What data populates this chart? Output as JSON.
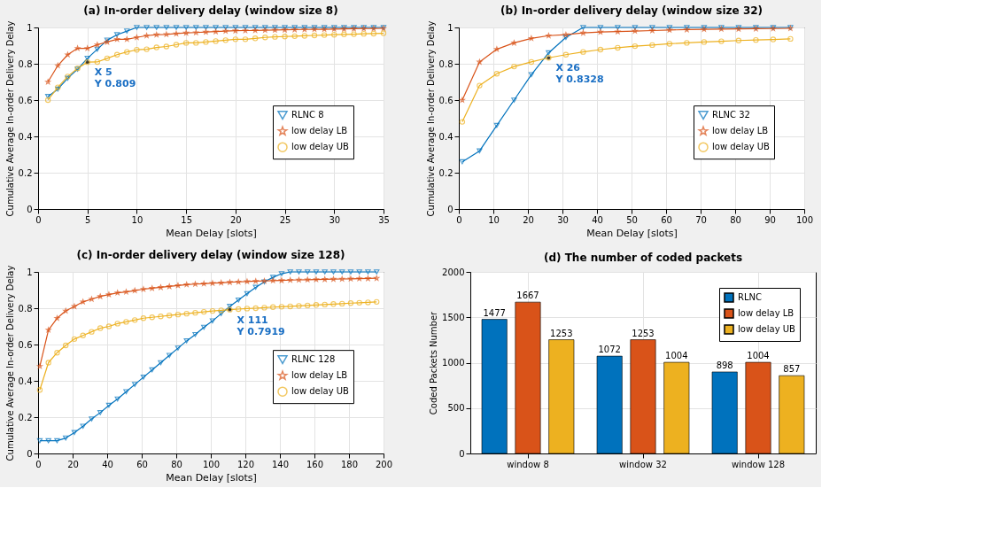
{
  "chart_data": [
    {
      "type": "line",
      "title": "(a) In-order delivery delay (window size 8)",
      "xlabel": "Mean Delay [slots]",
      "ylabel": "Cumulative Average In-order Delivery Delay",
      "x": [
        1,
        2,
        3,
        4,
        5,
        6,
        7,
        8,
        9,
        10,
        11,
        12,
        13,
        14,
        15,
        16,
        17,
        18,
        19,
        20,
        21,
        22,
        23,
        24,
        25,
        26,
        27,
        28,
        29,
        30,
        31,
        32,
        33,
        34,
        35
      ],
      "xlim": [
        0,
        35
      ],
      "xticks": [
        0,
        5,
        10,
        15,
        20,
        25,
        30,
        35
      ],
      "ylim": [
        0,
        1
      ],
      "yticks": [
        0,
        0.2,
        0.4,
        0.6,
        0.8,
        1
      ],
      "grid": true,
      "legend": "right",
      "series": [
        {
          "name": "RLNC 8",
          "color": "#0072bd",
          "marker": "triangle",
          "values": [
            0.62,
            0.66,
            0.72,
            0.77,
            0.83,
            0.88,
            0.93,
            0.96,
            0.98,
            1,
            1,
            1,
            1,
            1,
            1,
            1,
            1,
            1,
            1,
            1,
            1,
            1,
            1,
            1,
            1,
            1,
            1,
            1,
            1,
            1,
            1,
            1,
            1,
            1,
            1
          ]
        },
        {
          "name": "low delay LB",
          "color": "#d95319",
          "marker": "star",
          "values": [
            0.7,
            0.79,
            0.85,
            0.885,
            0.885,
            0.905,
            0.92,
            0.935,
            0.935,
            0.945,
            0.955,
            0.96,
            0.962,
            0.966,
            0.97,
            0.972,
            0.975,
            0.977,
            0.98,
            0.982,
            0.983,
            0.984,
            0.985,
            0.986,
            0.987,
            0.988,
            0.989,
            0.99,
            0.99,
            0.991,
            0.992,
            0.993,
            0.994,
            0.994,
            0.995
          ]
        },
        {
          "name": "low delay UB",
          "color": "#edb120",
          "marker": "circle",
          "values": [
            0.6,
            0.67,
            0.73,
            0.775,
            0.809,
            0.81,
            0.83,
            0.85,
            0.865,
            0.877,
            0.88,
            0.89,
            0.895,
            0.905,
            0.915,
            0.915,
            0.92,
            0.925,
            0.93,
            0.935,
            0.935,
            0.94,
            0.945,
            0.948,
            0.95,
            0.952,
            0.954,
            0.956,
            0.958,
            0.96,
            0.962,
            0.963,
            0.965,
            0.966,
            0.968
          ]
        }
      ],
      "annotations": [
        {
          "text": "X 5\nY 0.809",
          "x": 5,
          "y": 0.809
        }
      ]
    },
    {
      "type": "line",
      "title": "(b) In-order delivery delay (window size 32)",
      "xlabel": "Mean Delay [slots]",
      "ylabel": "Cumulative Average In-order Delivery Delay",
      "x": [
        1,
        6,
        11,
        16,
        21,
        26,
        31,
        36,
        41,
        46,
        51,
        56,
        61,
        66,
        71,
        76,
        81,
        86,
        91,
        96
      ],
      "xlim": [
        0,
        100
      ],
      "xticks": [
        0,
        10,
        20,
        30,
        40,
        50,
        60,
        70,
        80,
        90,
        100
      ],
      "ylim": [
        0,
        1
      ],
      "yticks": [
        0,
        0.2,
        0.4,
        0.6,
        0.8,
        1
      ],
      "grid": true,
      "legend": "right",
      "series": [
        {
          "name": "RLNC 32",
          "color": "#0072bd",
          "marker": "triangle",
          "values": [
            0.26,
            0.32,
            0.46,
            0.6,
            0.74,
            0.86,
            0.945,
            1,
            1,
            1,
            1,
            1,
            1,
            1,
            1,
            1,
            1,
            1,
            1,
            1
          ]
        },
        {
          "name": "low delay LB",
          "color": "#d95319",
          "marker": "star",
          "values": [
            0.6,
            0.81,
            0.88,
            0.915,
            0.94,
            0.955,
            0.96,
            0.97,
            0.975,
            0.977,
            0.98,
            0.983,
            0.986,
            0.988,
            0.99,
            0.991,
            0.992,
            0.993,
            0.994,
            0.995
          ]
        },
        {
          "name": "low delay UB",
          "color": "#edb120",
          "marker": "circle",
          "values": [
            0.48,
            0.68,
            0.745,
            0.785,
            0.81,
            0.8328,
            0.85,
            0.865,
            0.878,
            0.888,
            0.897,
            0.903,
            0.91,
            0.915,
            0.92,
            0.924,
            0.928,
            0.931,
            0.934,
            0.937
          ]
        }
      ],
      "annotations": [
        {
          "text": "X 26\nY 0.8328",
          "x": 26,
          "y": 0.8328
        }
      ]
    },
    {
      "type": "line",
      "title": "(c) In-order delivery delay (window size 128)",
      "xlabel": "Mean Delay [slots]",
      "ylabel": "Cumulative Average In-order Delivery Delay",
      "x": [
        1,
        6,
        11,
        16,
        21,
        26,
        31,
        36,
        41,
        46,
        51,
        56,
        61,
        66,
        71,
        76,
        81,
        86,
        91,
        96,
        101,
        106,
        111,
        116,
        121,
        126,
        131,
        136,
        141,
        146,
        151,
        156,
        161,
        166,
        171,
        176,
        181,
        186,
        191,
        196
      ],
      "xlim": [
        0,
        200
      ],
      "xticks": [
        0,
        20,
        40,
        60,
        80,
        100,
        120,
        140,
        160,
        180,
        200
      ],
      "ylim": [
        0,
        1
      ],
      "yticks": [
        0,
        0.2,
        0.4,
        0.6,
        0.8,
        1
      ],
      "grid": true,
      "legend": "right",
      "series": [
        {
          "name": "RLNC 128",
          "color": "#0072bd",
          "marker": "triangle",
          "values": [
            0.07,
            0.07,
            0.07,
            0.085,
            0.115,
            0.15,
            0.19,
            0.225,
            0.265,
            0.3,
            0.34,
            0.38,
            0.42,
            0.46,
            0.5,
            0.54,
            0.58,
            0.62,
            0.655,
            0.695,
            0.73,
            0.77,
            0.81,
            0.845,
            0.88,
            0.915,
            0.945,
            0.97,
            0.99,
            1,
            1,
            1,
            1,
            1,
            1,
            1,
            1,
            1,
            1,
            1
          ]
        },
        {
          "name": "low delay LB",
          "color": "#d95319",
          "marker": "star",
          "values": [
            0.48,
            0.68,
            0.745,
            0.785,
            0.81,
            0.835,
            0.85,
            0.865,
            0.875,
            0.885,
            0.89,
            0.897,
            0.905,
            0.91,
            0.915,
            0.92,
            0.925,
            0.93,
            0.933,
            0.935,
            0.938,
            0.94,
            0.943,
            0.945,
            0.947,
            0.949,
            0.95,
            0.952,
            0.953,
            0.955,
            0.956,
            0.957,
            0.958,
            0.959,
            0.96,
            0.961,
            0.962,
            0.963,
            0.964,
            0.965
          ]
        },
        {
          "name": "low delay UB",
          "color": "#edb120",
          "marker": "circle",
          "values": [
            0.35,
            0.5,
            0.555,
            0.595,
            0.63,
            0.65,
            0.67,
            0.69,
            0.7,
            0.715,
            0.725,
            0.735,
            0.745,
            0.75,
            0.755,
            0.76,
            0.765,
            0.77,
            0.775,
            0.78,
            0.785,
            0.788,
            0.7919,
            0.795,
            0.798,
            0.8,
            0.803,
            0.806,
            0.808,
            0.81,
            0.813,
            0.815,
            0.818,
            0.82,
            0.823,
            0.825,
            0.828,
            0.83,
            0.832,
            0.835
          ]
        }
      ],
      "annotations": [
        {
          "text": "X 111\nY 0.7919",
          "x": 111,
          "y": 0.7919
        }
      ]
    },
    {
      "type": "bar",
      "title": "(d) The number of coded packets",
      "ylabel": "Coded Packets Number",
      "categories": [
        "window 8",
        "window 32",
        "window 128"
      ],
      "ylim": [
        0,
        2000
      ],
      "yticks": [
        0,
        500,
        1000,
        1500,
        2000
      ],
      "grid": true,
      "legend": "top right",
      "data_labels": true,
      "series": [
        {
          "name": "RLNC",
          "color": "#0072bd",
          "values": [
            1477,
            1072,
            898
          ]
        },
        {
          "name": "low delay LB",
          "color": "#d95319",
          "values": [
            1667,
            1253,
            1004
          ]
        },
        {
          "name": "low delay UB",
          "color": "#edb120",
          "values": [
            1253,
            1004,
            857
          ]
        }
      ]
    }
  ]
}
